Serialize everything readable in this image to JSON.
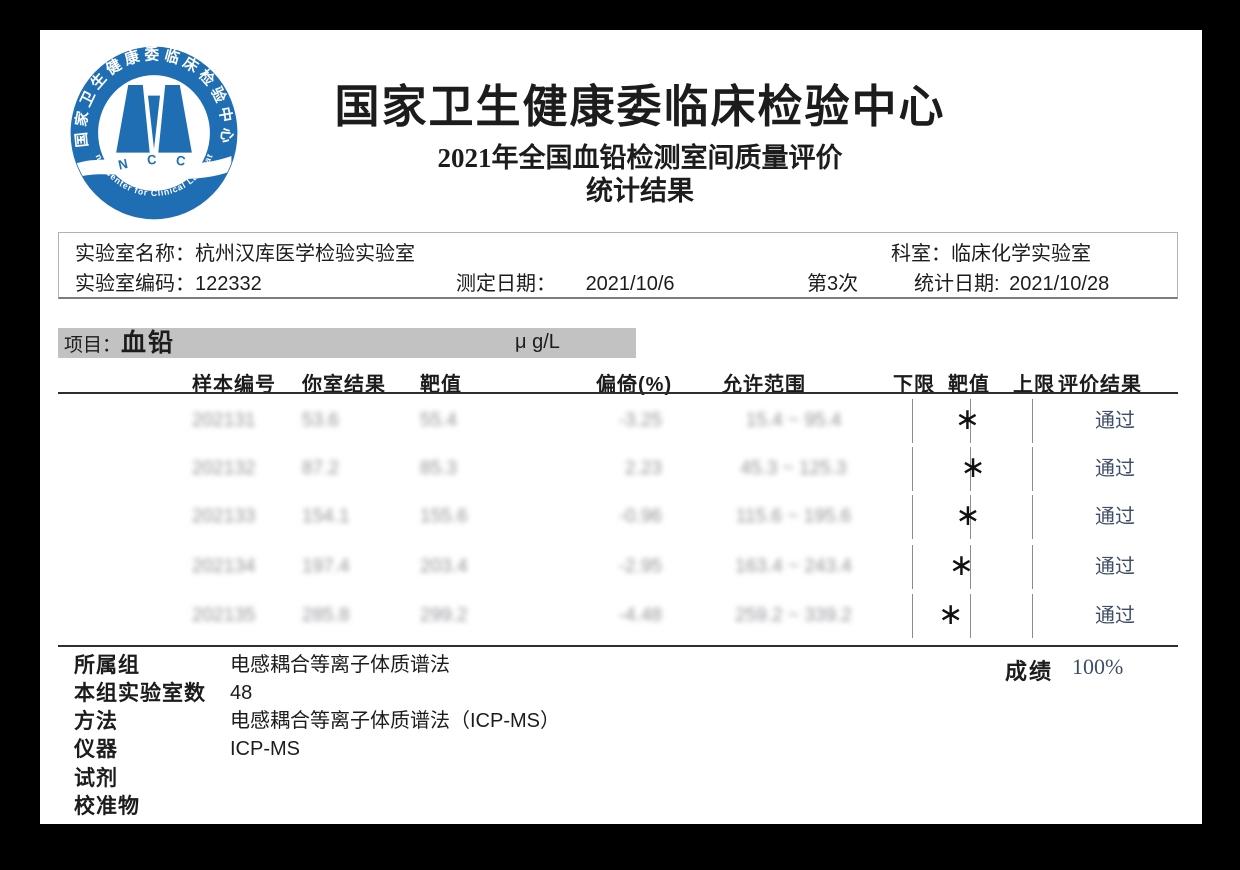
{
  "page": {
    "title": "国家卫生健康委临床检验中心",
    "subtitle1": "2021年全国血铅检测室间质量评价",
    "subtitle2": "统计结果"
  },
  "logo": {
    "ring_text_top": "国家卫生健康委临床检验中心",
    "ring_text_bottom": "National Center for Clinical Laboratories",
    "banner_text": "N C C L",
    "blue": "#1f6eb4"
  },
  "lab_info": {
    "lab_name_label": "实验室名称：",
    "lab_name": "杭州汉库医学检验实验室",
    "department_label": "科室：",
    "department": "临床化学实验室",
    "lab_code_label": "实验室编码：",
    "lab_code": "122332",
    "test_date_label": "测定日期：",
    "test_date": "2021/10/6",
    "round": "第3次",
    "stat_date_label": "统计日期:",
    "stat_date": "2021/10/28"
  },
  "project": {
    "label": "项目：",
    "name": "血铅",
    "unit": "μ g/L"
  },
  "table": {
    "headers": [
      "样本编号",
      "你室结果",
      "靶值",
      "偏倚(%)",
      "允许范围",
      "下限",
      "靶值",
      "上限",
      "评价结果"
    ],
    "marker_glyph": "∗",
    "rows": [
      {
        "sample": "202131",
        "result": "53.6",
        "target": "55.4",
        "bias": "-3.25",
        "range": "15.4 ~ 95.4",
        "res": 53.6,
        "tgt": 55.4,
        "low": 15.4,
        "high": 95.4,
        "eval": "通过"
      },
      {
        "sample": "202132",
        "result": "87.2",
        "target": "85.3",
        "bias": "2.23",
        "range": "45.3 ~ 125.3",
        "res": 87.2,
        "tgt": 85.3,
        "low": 45.3,
        "high": 125.3,
        "eval": "通过"
      },
      {
        "sample": "202133",
        "result": "154.1",
        "target": "155.6",
        "bias": "-0.96",
        "range": "115.6 ~ 195.6",
        "res": 154.1,
        "tgt": 155.6,
        "low": 115.6,
        "high": 195.6,
        "eval": "通过"
      },
      {
        "sample": "202134",
        "result": "197.4",
        "target": "203.4",
        "bias": "-2.95",
        "range": "163.4 ~ 243.4",
        "res": 197.4,
        "tgt": 203.4,
        "low": 163.4,
        "high": 243.4,
        "eval": "通过"
      },
      {
        "sample": "202135",
        "result": "285.8",
        "target": "299.2",
        "bias": "-4.48",
        "range": "259.2 ~ 339.2",
        "res": 285.8,
        "tgt": 299.2,
        "low": 259.2,
        "high": 339.2,
        "eval": "通过"
      }
    ]
  },
  "footer": {
    "rows": [
      {
        "label": "所属组",
        "value": "电感耦合等离子体质谱法"
      },
      {
        "label": "本组实验室数",
        "value": "48"
      },
      {
        "label": "方法",
        "value": "电感耦合等离子体质谱法（ICP-MS）"
      },
      {
        "label": "仪器",
        "value": "ICP-MS"
      },
      {
        "label": "试剂",
        "value": ""
      },
      {
        "label": "校准物",
        "value": ""
      }
    ],
    "score_label": "成绩",
    "score_value": "100%"
  },
  "colors": {
    "logo_blue": "#1f6eb4",
    "pass_text": "#3d4e66",
    "project_bar": "#c2c2c2",
    "page_background": "#000000",
    "sheet_background": "#ffffff"
  }
}
